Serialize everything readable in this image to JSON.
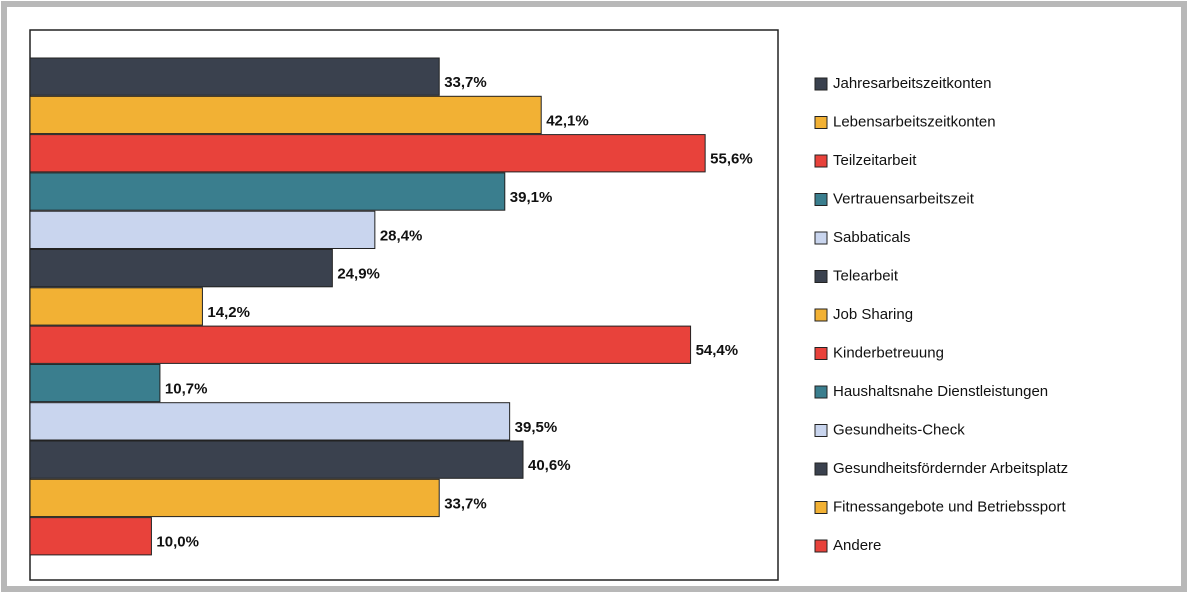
{
  "chart_data": {
    "type": "barh",
    "categories": [
      "Jahresarbeitszeitkonten",
      "Lebensarbeitszeitkonten",
      "Teilzeitarbeit",
      "Vertrauensarbeitszeit",
      "Sabbaticals",
      "Telearbeit",
      "Job Sharing",
      "Kinderbetreuung",
      "Haushaltsnahe Dienstleistungen",
      "Gesundheits-Check",
      "Gesundheitsfördernder Arbeitsplatz",
      "Fitnessangebote und Betriebssport",
      "Andere"
    ],
    "values": [
      33.7,
      42.1,
      55.6,
      39.1,
      28.4,
      24.9,
      14.2,
      54.4,
      10.7,
      39.5,
      40.6,
      33.7,
      10.0
    ],
    "value_labels": [
      "33,7%",
      "42,1%",
      "55,6%",
      "39,1%",
      "28,4%",
      "24,9%",
      "14,2%",
      "54,4%",
      "10,7%",
      "39,5%",
      "40,6%",
      "33,7%",
      "10,0%"
    ],
    "colors": [
      "#3a414e",
      "#f2b134",
      "#e8423b",
      "#3a7e8e",
      "#c9d5ee",
      "#3a414e",
      "#f2b134",
      "#e8423b",
      "#3a7e8e",
      "#c9d5ee",
      "#3a414e",
      "#f2b134",
      "#e8423b"
    ],
    "xlim": [
      0,
      61.6
    ],
    "legend": "right"
  }
}
